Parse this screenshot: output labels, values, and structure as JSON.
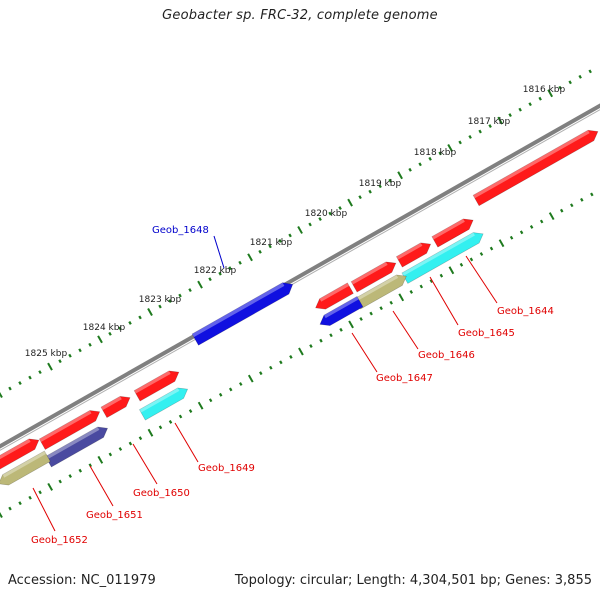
{
  "title": "Geobacter sp. FRC-32, complete genome",
  "footer": {
    "accession": "Accession: NC_011979",
    "summary": "Topology: circular; Length: 4,304,501 bp; Genes: 3,855"
  },
  "kbp_ticks": [
    "1816 kbp",
    "1817 kbp",
    "1818 kbp",
    "1819 kbp",
    "1820 kbp",
    "1821 kbp",
    "1822 kbp",
    "1823 kbp",
    "1824 kbp",
    "1825 kbp"
  ],
  "colors": {
    "backbone": "#808080",
    "tick": "#1e7a1e",
    "red": "#ff1a1a",
    "blue": "#1010e0",
    "cyan": "#33f0f0",
    "olive": "#bcb878",
    "navy": "#4a4aa0",
    "label_red": "#e00000",
    "label_blue": "#0000cc"
  },
  "genes": [
    {
      "name": "Geob_1644",
      "color": "red"
    },
    {
      "name": "Geob_1645",
      "color": "cyan"
    },
    {
      "name": "Geob_1646",
      "color": "olive"
    },
    {
      "name": "Geob_1647",
      "color": "blue"
    },
    {
      "name": "Geob_1648",
      "color": "blue"
    },
    {
      "name": "Geob_1649",
      "color": "cyan"
    },
    {
      "name": "Geob_1650",
      "color": "red"
    },
    {
      "name": "Geob_1651",
      "color": "navy"
    },
    {
      "name": "Geob_1652",
      "color": "olive"
    }
  ]
}
